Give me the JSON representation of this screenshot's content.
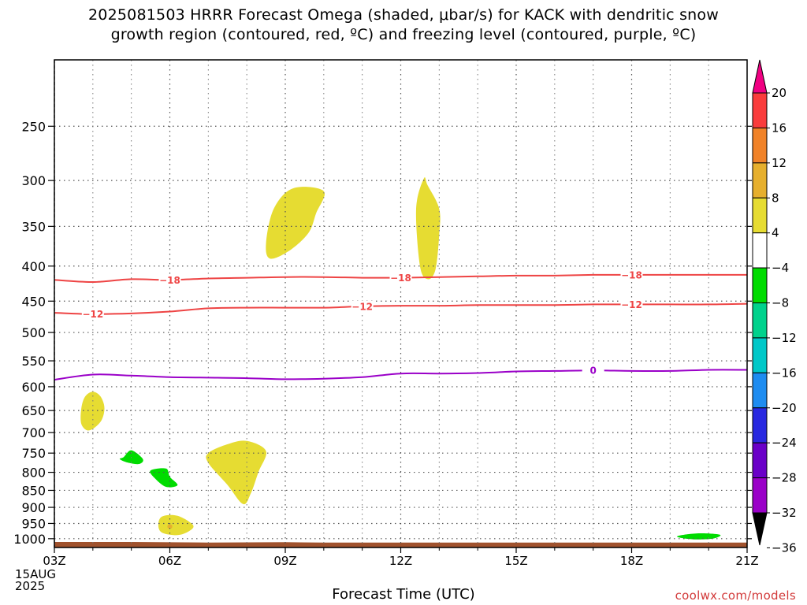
{
  "chart_data": {
    "type": "contour",
    "title": [
      "2025081503 HRRR Forecast Omega (shaded, μbar/s) for KACK with dendritic snow",
      "growth region (contoured, red, ºC) and freezing level (contoured, purple, ºC)"
    ],
    "xlabel": "Forecast Time (UTC)",
    "ylabel": "",
    "x_ticks": [
      "03Z",
      "06Z",
      "09Z",
      "12Z",
      "15Z",
      "18Z",
      "21Z"
    ],
    "x_hours": [
      3,
      6,
      9,
      12,
      15,
      18,
      21
    ],
    "xlim": [
      3,
      21
    ],
    "date_label": [
      "15AUG",
      "2025"
    ],
    "y_ticks": [
      250,
      300,
      350,
      400,
      450,
      500,
      550,
      600,
      650,
      700,
      750,
      800,
      850,
      900,
      950,
      1000
    ],
    "ylim": [
      200,
      1030
    ],
    "y_scale": "log-pressure",
    "colorbar": {
      "levels": [
        -36,
        -32,
        -28,
        -24,
        -20,
        -16,
        -12,
        -8,
        -4,
        4,
        8,
        12,
        16,
        20
      ],
      "labels": [
        "20",
        "16",
        "12",
        "8",
        "4",
        "−4",
        "−8",
        "−12",
        "−16",
        "−20",
        "−24",
        "−28",
        "−32",
        "−36"
      ],
      "colors": [
        "#a0a0a0",
        "#9a00c8",
        "#6a00c8",
        "#2828e0",
        "#1e8cf0",
        "#00c8c8",
        "#00d28c",
        "#00dc00",
        "#ffffff",
        "#e6dc32",
        "#e6af2d",
        "#f08228",
        "#fa3c3c",
        "#f00082"
      ]
    },
    "contours": [
      {
        "name": "-18",
        "color": "#ee4444",
        "x": [
          3,
          4,
          5,
          6,
          7,
          8,
          9,
          10,
          11,
          12,
          13,
          14,
          15,
          16,
          17,
          18,
          19,
          20,
          21
        ],
        "p": [
          419,
          422,
          418,
          419,
          417,
          416,
          415,
          415,
          416,
          416,
          415,
          414,
          413,
          413,
          412,
          412,
          412,
          412,
          412
        ]
      },
      {
        "name": "-12",
        "color": "#ee4444",
        "x": [
          3,
          4,
          5,
          6,
          7,
          8,
          9,
          10,
          11,
          12,
          13,
          14,
          15,
          16,
          17,
          18,
          19,
          20,
          21
        ],
        "p": [
          468,
          470,
          469,
          466,
          461,
          460,
          460,
          460,
          458,
          457,
          457,
          456,
          456,
          456,
          455,
          455,
          455,
          455,
          454
        ]
      },
      {
        "name": "0",
        "color": "#9a00c8",
        "x": [
          3,
          4,
          5,
          6,
          7,
          8,
          9,
          10,
          11,
          12,
          13,
          14,
          15,
          16,
          17,
          18,
          19,
          20,
          21
        ],
        "p": [
          586,
          576,
          578,
          581,
          582,
          583,
          585,
          584,
          581,
          574,
          574,
          573,
          570,
          569,
          568,
          569,
          569,
          567,
          567
        ]
      }
    ],
    "contour_label_hours": {
      "-18": [
        6,
        12,
        18
      ],
      "-12": [
        4,
        11,
        18
      ],
      "0": [
        17
      ]
    },
    "omega_regions": [
      {
        "value": 4,
        "color": "#e6dc32",
        "x": [
          9.2,
          10.0,
          9.8,
          9.6,
          9.1,
          8.6,
          8.5,
          8.7
        ],
        "p": [
          308,
          311,
          335,
          358,
          380,
          390,
          370,
          330
        ]
      },
      {
        "value": 4,
        "color": "#e6dc32",
        "x": [
          12.6,
          12.7,
          13.0,
          13.0,
          12.9,
          12.7,
          12.5,
          12.4
        ],
        "p": [
          298,
          305,
          330,
          360,
          405,
          418,
          400,
          330
        ]
      },
      {
        "value": 4,
        "color": "#e6dc32",
        "x": [
          4.0,
          4.2,
          4.3,
          4.2,
          3.9,
          3.7,
          3.7,
          3.8
        ],
        "p": [
          610,
          620,
          645,
          675,
          695,
          680,
          645,
          620
        ]
      },
      {
        "value": 4,
        "color": "#e6dc32",
        "x": [
          7.0,
          7.5,
          8.0,
          8.5,
          8.3,
          8.1,
          7.9,
          7.5,
          7.0
        ],
        "p": [
          750,
          728,
          720,
          745,
          800,
          860,
          890,
          835,
          775
        ]
      },
      {
        "value": 4,
        "color": "#e6dc32",
        "x": [
          5.8,
          6.2,
          6.6,
          6.5,
          6.2,
          5.8,
          5.7
        ],
        "p": [
          928,
          926,
          955,
          975,
          988,
          980,
          955
        ]
      },
      {
        "value": 8,
        "color": "#e6af2d",
        "x": [
          5.95,
          6.05,
          6.05,
          5.95
        ],
        "p": [
          955,
          955,
          965,
          965
        ]
      },
      {
        "value": -4,
        "color": "#00dc00",
        "x": [
          4.8,
          5.0,
          5.3,
          5.2,
          4.9,
          4.7
        ],
        "p": [
          760,
          743,
          765,
          778,
          774,
          765
        ]
      },
      {
        "value": -4,
        "color": "#00dc00",
        "x": [
          5.5,
          5.9,
          6.0,
          6.2,
          5.9,
          5.6
        ],
        "p": [
          795,
          790,
          812,
          835,
          840,
          815
        ]
      },
      {
        "value": -4,
        "color": "#00dc00",
        "x": [
          19.3,
          19.8,
          20.3,
          20.1,
          19.6,
          19.2
        ],
        "p": [
          988,
          982,
          987,
          1000,
          1002,
          995
        ]
      }
    ],
    "surface_ground": {
      "color": "#a0522d",
      "x": [
        3,
        5,
        7,
        9,
        10,
        21
      ],
      "p": [
        1011,
        1011,
        1013,
        1012,
        1013,
        1013
      ]
    },
    "grid": true
  },
  "watermark": "coolwx.com/models"
}
